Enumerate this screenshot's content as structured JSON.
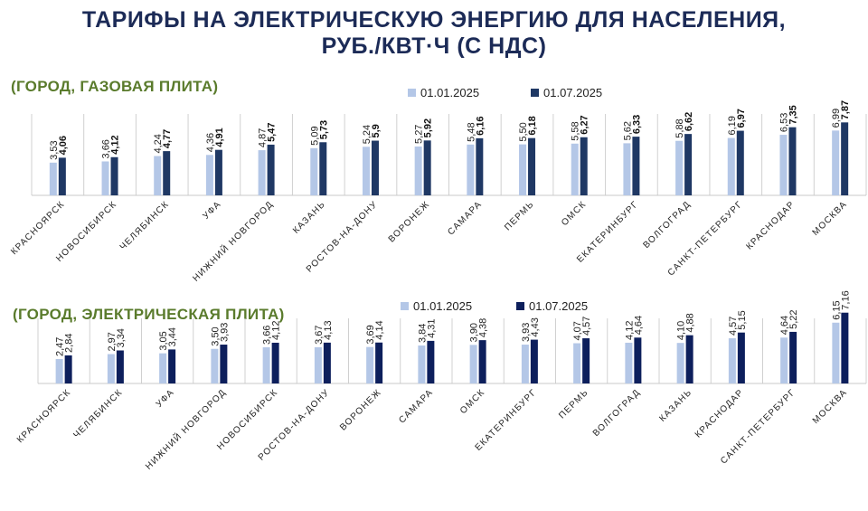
{
  "title": {
    "line1": "ТАРИФЫ НА ЭЛЕКТРИЧЕСКУЮ ЭНЕРГИЮ ДЛЯ НАСЕЛЕНИЯ,",
    "line2": "РУБ./КВТ·Ч (С НДС)"
  },
  "colors": {
    "series_a": "#b4c7e7",
    "series_b": "#1f3864",
    "series_b2": "#0d1f5c",
    "subtitle": "#5a7b2c",
    "title": "#1c2b57"
  },
  "chart_data": [
    {
      "type": "bar",
      "title": "(ГОРОД, ГАЗОВАЯ ПЛИТА)",
      "categories": [
        "КРАСНОЯРСК",
        "НОВОСИБИРСК",
        "ЧЕЛЯБИНСК",
        "УФА",
        "НИЖНИЙ НОВГОРОД",
        "КАЗАНЬ",
        "РОСТОВ-НА-ДОНУ",
        "ВОРОНЕЖ",
        "САМАРА",
        "ПЕРМЬ",
        "ОМСК",
        "ЕКАТЕРИНБУРГ",
        "ВОЛГОГРАД",
        "САНКТ-ПЕТЕРБУРГ",
        "КРАСНОДАР",
        "МОСКВА"
      ],
      "series": [
        {
          "name": "01.01.2025",
          "values": [
            3.53,
            3.66,
            4.24,
            4.36,
            4.87,
            5.09,
            5.24,
            5.27,
            5.48,
            5.5,
            5.58,
            5.62,
            5.88,
            6.19,
            6.53,
            6.99
          ],
          "labels": [
            "3,53",
            "3,66",
            "4,24",
            "4,36",
            "4,87",
            "5,09",
            "5,24",
            "5,27",
            "5,48",
            "5,50",
            "5,58",
            "5,62",
            "5,88",
            "6,19",
            "6,53",
            "6,99"
          ]
        },
        {
          "name": "01.07.2025",
          "values": [
            4.06,
            4.12,
            4.77,
            4.91,
            5.47,
            5.73,
            5.9,
            5.92,
            6.16,
            6.18,
            6.27,
            6.33,
            6.62,
            6.97,
            7.35,
            7.87
          ],
          "labels": [
            "4,06",
            "4,12",
            "4,77",
            "4,91",
            "5,47",
            "5,73",
            "5,9",
            "5,92",
            "6,16",
            "6,18",
            "6,27",
            "6,33",
            "6,62",
            "6,97",
            "7,35",
            "7,87"
          ]
        }
      ],
      "legend": "top-right",
      "ylim": [
        0,
        8
      ],
      "grid": false
    },
    {
      "type": "bar",
      "title": "(ГОРОД, ЭЛЕКТРИЧЕСКАЯ ПЛИТА)",
      "categories": [
        "КРАСНОЯРСК",
        "ЧЕЛЯБИНСК",
        "УФА",
        "НИЖНИЙ НОВГОРОД",
        "НОВОСИБИРСК",
        "РОСТОВ-НА-ДОНУ",
        "ВОРОНЕЖ",
        "САМАРА",
        "ОМСК",
        "ЕКАТЕРИНБУРГ",
        "ПЕРМЬ",
        "ВОЛГОГРАД",
        "КАЗАНЬ",
        "КРАСНОДАР",
        "САНКТ-ПЕТЕРБУРГ",
        "МОСКВА"
      ],
      "series": [
        {
          "name": "01.01.2025",
          "values": [
            2.47,
            2.97,
            3.05,
            3.5,
            3.66,
            3.67,
            3.69,
            3.84,
            3.9,
            3.93,
            4.07,
            4.12,
            4.1,
            4.57,
            4.64,
            6.15
          ],
          "labels": [
            "2,47",
            "2,97",
            "3,05",
            "3,50",
            "3,66",
            "3,67",
            "3,69",
            "3,84",
            "3,90",
            "3,93",
            "4,07",
            "4,12",
            "4,10",
            "4,57",
            "4,64",
            "6,15"
          ]
        },
        {
          "name": "01.07.2025",
          "values": [
            2.84,
            3.34,
            3.44,
            3.93,
            4.12,
            4.13,
            4.14,
            4.31,
            4.38,
            4.43,
            4.57,
            4.64,
            4.88,
            5.15,
            5.22,
            7.16
          ],
          "labels": [
            "2,84",
            "3,34",
            "3,44",
            "3,93",
            "4,12",
            "4,13",
            "4,14",
            "4,31",
            "4,38",
            "4,43",
            "4,57",
            "4,64",
            "4,88",
            "5,15",
            "5,22",
            "7,16"
          ]
        }
      ],
      "legend": "top-right",
      "ylim": [
        0,
        7.5
      ],
      "grid": false
    }
  ]
}
